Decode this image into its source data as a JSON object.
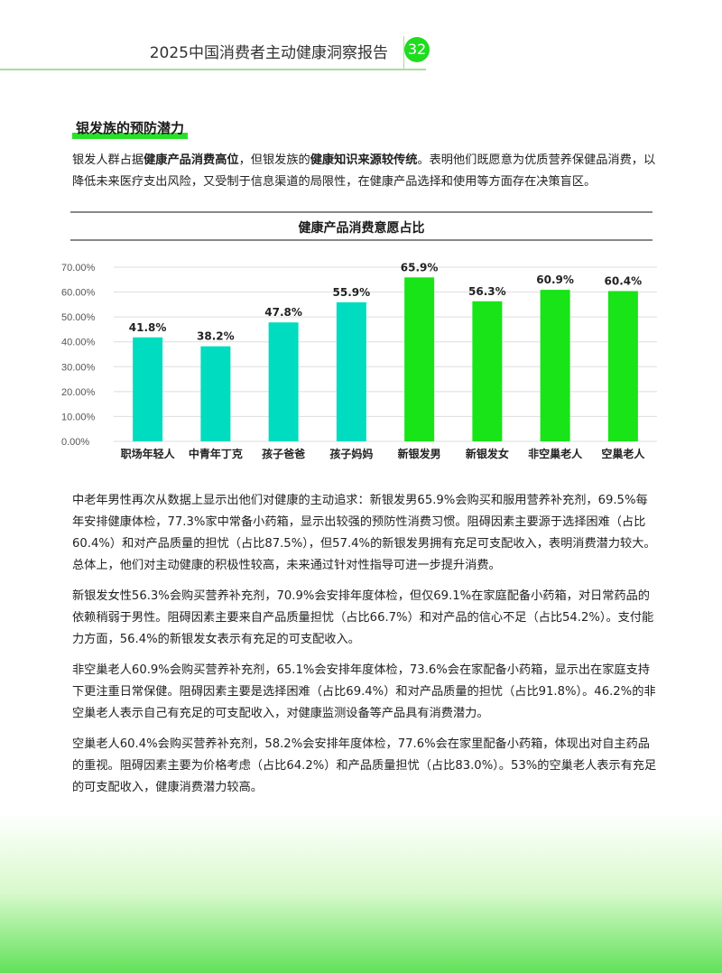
{
  "header": {
    "report_title": "2025中国消费者主动健康洞察报告",
    "page_number": "32",
    "accent": "#1fdc1f"
  },
  "section": {
    "title": "银发族的预防潜力",
    "intro": [
      {
        "text": "银发人群占据",
        "bold": false
      },
      {
        "text": "健康产品消费高位",
        "bold": true
      },
      {
        "text": "，但银发族的",
        "bold": false
      },
      {
        "text": "健康知识来源较传统",
        "bold": true
      },
      {
        "text": "。表明他们既愿意为优质营养保健品消费，以降低未来医疗支出风险，又受制于信息渠道的局限性，在健康产品选择和使用等方面存在决策盲区。",
        "bold": false
      }
    ]
  },
  "chart_data": {
    "type": "bar",
    "title": "健康产品消费意愿占比",
    "categories": [
      "职场年轻人",
      "中青年丁克",
      "孩子爸爸",
      "孩子妈妈",
      "新银发男",
      "新银发女",
      "非空巢老人",
      "空巢老人"
    ],
    "values": [
      41.8,
      38.2,
      47.8,
      55.9,
      65.9,
      56.3,
      60.9,
      60.4
    ],
    "data_labels": [
      "41.8%",
      "38.2%",
      "47.8%",
      "55.9%",
      "65.9%",
      "56.3%",
      "60.9%",
      "60.4%"
    ],
    "bar_colors": [
      "#00dcc0",
      "#00dcc0",
      "#00dcc0",
      "#00dcc0",
      "#18e418",
      "#18e418",
      "#18e418",
      "#18e418"
    ],
    "yticks": [
      "0.00%",
      "10.00%",
      "20.00%",
      "30.00%",
      "40.00%",
      "50.00%",
      "60.00%",
      "70.00%"
    ],
    "ylim": [
      0,
      70
    ],
    "grid": true,
    "xlabel": "",
    "ylabel": ""
  },
  "paragraphs": [
    "中老年男性再次从数据上显示出他们对健康的主动追求：新银发男65.9%会购买和服用营养补充剂，69.5%每年安排健康体检，77.3%家中常备小药箱，显示出较强的预防性消费习惯。阻碍因素主要源于选择困难（占比60.4%）和对产品质量的担忧（占比87.5%），但57.4%的新银发男拥有充足可支配收入，表明消费潜力较大。总体上，他们对主动健康的积极性较高，未来通过针对性指导可进一步提升消费。",
    "新银发女性56.3%会购买营养补充剂，70.9%会安排年度体检，但仅69.1%在家庭配备小药箱，对日常药品的依赖稍弱于男性。阻碍因素主要来自产品质量担忧（占比66.7%）和对产品的信心不足（占比54.2%）。支付能力方面，56.4%的新银发女表示有充足的可支配收入。",
    "非空巢老人60.9%会购买营养补充剂，65.1%会安排年度体检，73.6%会在家配备小药箱，显示出在家庭支持下更注重日常保健。阻碍因素主要是选择困难（占比69.4%）和对产品质量的担忧（占比91.8%）。46.2%的非空巢老人表示自己有充足的可支配收入，对健康监测设备等产品具有消费潜力。",
    "空巢老人60.4%会购买营养补充剂，58.2%会安排年度体检，77.6%会在家里配备小药箱，体现出对自主药品的重视。阻碍因素主要为价格考虑（占比64.2%）和产品质量担忧（占比83.0%）。53%的空巢老人表示有充足的可支配收入，健康消费潜力较高。"
  ]
}
